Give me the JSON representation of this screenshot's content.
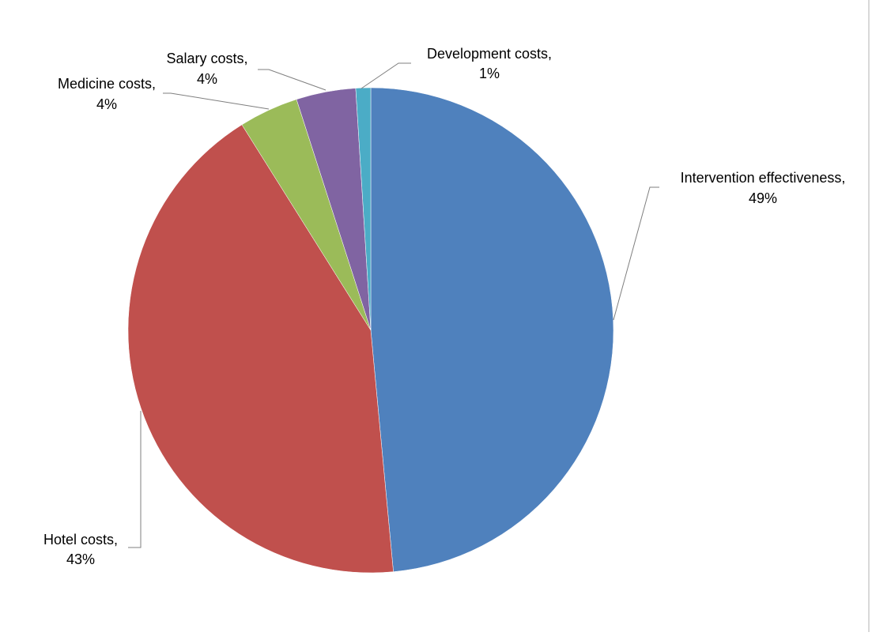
{
  "chart_data": {
    "type": "pie",
    "title": "",
    "slices": [
      {
        "label": "Intervention effectiveness",
        "value": 49,
        "value_text": "49%",
        "color": "#4F81BD"
      },
      {
        "label": "Hotel costs",
        "value": 43,
        "value_text": "43%",
        "color": "#C0504D"
      },
      {
        "label": "Medicine costs",
        "value": 4,
        "value_text": "4%",
        "color": "#9BBB59"
      },
      {
        "label": "Salary costs",
        "value": 4,
        "value_text": "4%",
        "color": "#8064A2"
      },
      {
        "label": "Development costs",
        "value": 1,
        "value_text": "1%",
        "color": "#4BACC6"
      }
    ],
    "label_separator": ",",
    "start_angle_deg": 0,
    "direction": "clockwise",
    "legend": "none",
    "data_labels": "outside-with-leader-lines"
  }
}
